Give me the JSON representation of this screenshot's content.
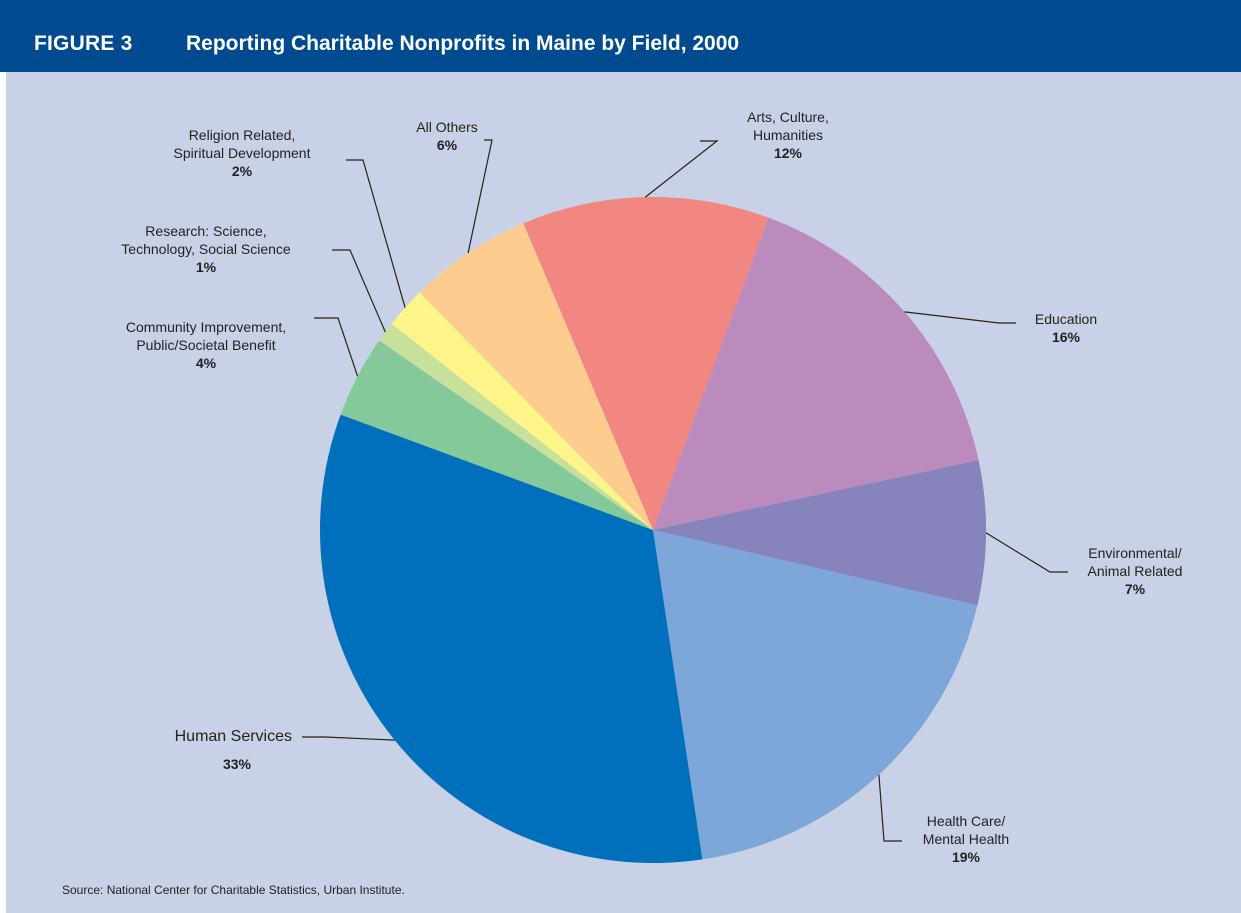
{
  "figure": {
    "number": "FIGURE 3",
    "title": "Reporting Charitable Nonprofits in Maine by Field, 2000",
    "source": "Source: National Center for Charitable Statistics, Urban Institute."
  },
  "colors": {
    "header_bg": "#004a8f",
    "panel_bg": "#c9d1e6"
  },
  "chart_data": {
    "type": "pie",
    "title": "Reporting Charitable Nonprofits in Maine by Field, 2000",
    "slices": [
      {
        "label": [
          "Arts, Culture,",
          "Humanities"
        ],
        "value": 12,
        "value_label": "12%",
        "color": "#f28680"
      },
      {
        "label": [
          "Education"
        ],
        "value": 16,
        "value_label": "16%",
        "color": "#bb8bbd"
      },
      {
        "label": [
          "Environmental/",
          "Animal Related"
        ],
        "value": 7,
        "value_label": "7%",
        "color": "#8783bd"
      },
      {
        "label": [
          "Health Care/",
          "Mental Health"
        ],
        "value": 19,
        "value_label": "19%",
        "color": "#7ea7d9"
      },
      {
        "label": [
          "Human Services"
        ],
        "value": 33,
        "value_label": "33%",
        "color": "#0070bd"
      },
      {
        "label": [
          "Community Improvement,",
          "Public/Societal Benefit"
        ],
        "value": 4,
        "value_label": "4%",
        "color": "#84c99a"
      },
      {
        "label": [
          "Research: Science,",
          "Technology, Social Science"
        ],
        "value": 1,
        "value_label": "1%",
        "color": "#c7e09c"
      },
      {
        "label": [
          "Religion Related,",
          "Spiritual Development"
        ],
        "value": 2,
        "value_label": "2%",
        "color": "#fdf589"
      },
      {
        "label": [
          "All Others"
        ],
        "value": 6,
        "value_label": "6%",
        "color": "#fccd8f"
      }
    ]
  }
}
